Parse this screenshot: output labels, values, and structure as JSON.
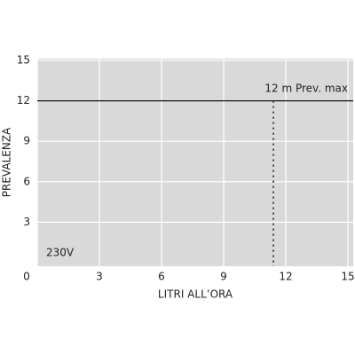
{
  "chart_data": {
    "type": "line",
    "xlabel": "LITRI ALL’ORA",
    "ylabel": "PREVALENZA",
    "xlim": [
      0,
      15
    ],
    "ylim": [
      0,
      15
    ],
    "xticks": [
      0,
      3,
      6,
      9,
      12,
      15
    ],
    "yticks": [
      3,
      6,
      9,
      12,
      15
    ],
    "grid": true,
    "max_head": 12,
    "max_flow": 11.4,
    "annotations": [
      "12 m Prev. max",
      "230V"
    ]
  }
}
